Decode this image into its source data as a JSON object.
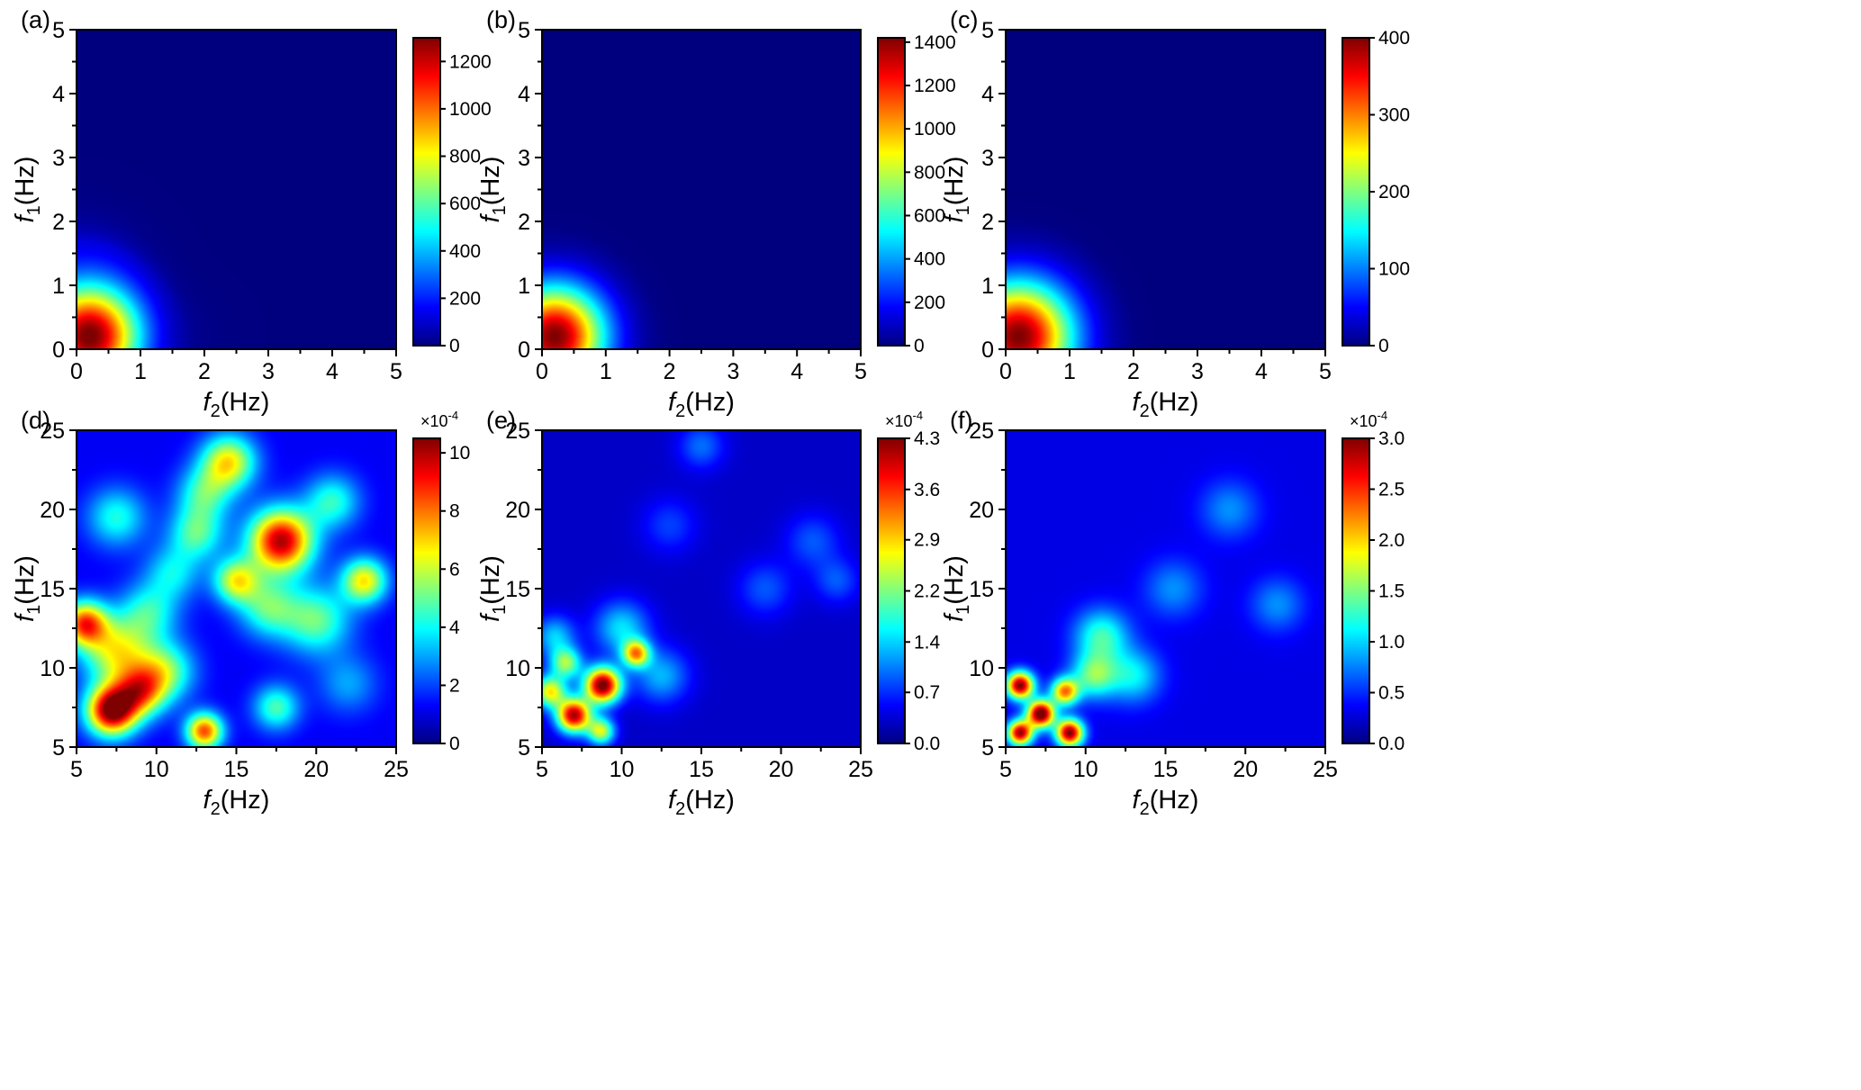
{
  "figure": {
    "title": "",
    "colormap": [
      "#00007f",
      "#0000ff",
      "#007fff",
      "#00ffff",
      "#7fff7f",
      "#ffff00",
      "#ff7f00",
      "#ff0000",
      "#7f0000"
    ],
    "axis_labels": {
      "x_var": "f",
      "x_sub": "2",
      "x_unit": "(Hz)",
      "y_var": "f",
      "y_sub": "1",
      "y_unit": "(Hz)"
    }
  },
  "chart_data": [
    {
      "type": "heatmap",
      "panel": "(a)",
      "xlim": [
        0,
        5
      ],
      "ylim": [
        0,
        5
      ],
      "xticks": [
        0,
        1,
        2,
        3,
        4,
        5
      ],
      "yticks": [
        0,
        1,
        2,
        3,
        4,
        5
      ],
      "colorbar": {
        "min": 0,
        "max": 1300,
        "ticks": [
          "0",
          "200",
          "400",
          "600",
          "800",
          "1000",
          "1200"
        ],
        "tick_values": [
          0,
          200,
          400,
          600,
          800,
          1000,
          1200
        ],
        "multiplier": ""
      },
      "peaks": [
        {
          "f2": 0.2,
          "f1": 0.2,
          "value": 1300,
          "spread": 0.55
        },
        {
          "f2": 0.0,
          "f1": 1.8,
          "value": 90,
          "spread": 0.9
        },
        {
          "f2": 2.5,
          "f1": 0.3,
          "value": 40,
          "spread": 0.6
        }
      ],
      "extent": 1.7
    },
    {
      "type": "heatmap",
      "panel": "(b)",
      "xlim": [
        0,
        5
      ],
      "ylim": [
        0,
        5
      ],
      "xticks": [
        0,
        1,
        2,
        3,
        4,
        5
      ],
      "yticks": [
        0,
        1,
        2,
        3,
        4,
        5
      ],
      "colorbar": {
        "min": 0,
        "max": 1420,
        "ticks": [
          "0",
          "200",
          "400",
          "600",
          "800",
          "1000",
          "1200",
          "1400"
        ],
        "tick_values": [
          0,
          200,
          400,
          600,
          800,
          1000,
          1200,
          1400
        ],
        "multiplier": ""
      },
      "peaks": [
        {
          "f2": 0.2,
          "f1": 0.2,
          "value": 1420,
          "spread": 0.55
        }
      ],
      "extent": 1.8
    },
    {
      "type": "heatmap",
      "panel": "(c)",
      "xlim": [
        0,
        5
      ],
      "ylim": [
        0,
        5
      ],
      "xticks": [
        0,
        1,
        2,
        3,
        4,
        5
      ],
      "yticks": [
        0,
        1,
        2,
        3,
        4,
        5
      ],
      "colorbar": {
        "min": 0,
        "max": 400,
        "ticks": [
          "0",
          "100",
          "200",
          "300",
          "400"
        ],
        "tick_values": [
          0,
          100,
          200,
          300,
          400
        ],
        "multiplier": ""
      },
      "peaks": [
        {
          "f2": 0.2,
          "f1": 0.2,
          "value": 400,
          "spread": 0.6
        }
      ],
      "extent": 1.9
    },
    {
      "type": "heatmap",
      "panel": "(d)",
      "xlim": [
        5,
        25
      ],
      "ylim": [
        5,
        25
      ],
      "xticks": [
        5,
        10,
        15,
        20,
        25
      ],
      "yticks": [
        5,
        10,
        15,
        20,
        25
      ],
      "colorbar": {
        "min": 0,
        "max": 10.5,
        "ticks": [
          "0",
          "2",
          "4",
          "6",
          "8",
          "10"
        ],
        "tick_values": [
          0,
          2,
          4,
          6,
          8,
          10
        ],
        "multiplier": "×10",
        "exponent": "-4"
      },
      "baseline": 1.2,
      "peaks": [
        {
          "f2": 7.2,
          "f1": 7.3,
          "value": 9.5,
          "spread": 1.1
        },
        {
          "f2": 17.8,
          "f1": 18.0,
          "value": 8.8,
          "spread": 1.4
        },
        {
          "f2": 5.5,
          "f1": 12.8,
          "value": 7.0,
          "spread": 1.0
        },
        {
          "f2": 13.0,
          "f1": 6.0,
          "value": 7.2,
          "spread": 0.8
        },
        {
          "f2": 9.0,
          "f1": 8.5,
          "value": 5.5,
          "spread": 1.1
        },
        {
          "f2": 7.5,
          "f1": 11.0,
          "value": 5.0,
          "spread": 1.5
        },
        {
          "f2": 10.5,
          "f1": 9.8,
          "value": 4.0,
          "spread": 1.3
        },
        {
          "f2": 14.5,
          "f1": 23.0,
          "value": 5.5,
          "spread": 1.2
        },
        {
          "f2": 15.0,
          "f1": 15.5,
          "value": 5.0,
          "spread": 1.0
        },
        {
          "f2": 23.0,
          "f1": 15.5,
          "value": 5.5,
          "spread": 1.0
        },
        {
          "f2": 20.0,
          "f1": 13.0,
          "value": 3.8,
          "spread": 1.5
        },
        {
          "f2": 17.0,
          "f1": 13.8,
          "value": 3.5,
          "spread": 1.3
        },
        {
          "f2": 12.5,
          "f1": 18.5,
          "value": 3.5,
          "spread": 1.2
        },
        {
          "f2": 21.0,
          "f1": 20.5,
          "value": 3.2,
          "spread": 1.2
        },
        {
          "f2": 13.0,
          "f1": 21.0,
          "value": 3.2,
          "spread": 1.2
        },
        {
          "f2": 9.5,
          "f1": 13.5,
          "value": 3.0,
          "spread": 1.3
        },
        {
          "f2": 17.5,
          "f1": 7.5,
          "value": 3.5,
          "spread": 1.0
        },
        {
          "f2": 7.5,
          "f1": 19.5,
          "value": 3.0,
          "spread": 1.3
        },
        {
          "f2": 11.0,
          "f1": 16.0,
          "value": 2.5,
          "spread": 1.2
        },
        {
          "f2": 22.0,
          "f1": 9.0,
          "value": 1.8,
          "spread": 1.3
        }
      ]
    },
    {
      "type": "heatmap",
      "panel": "(e)",
      "xlim": [
        5,
        25
      ],
      "ylim": [
        5,
        25
      ],
      "xticks": [
        5,
        10,
        15,
        20,
        25
      ],
      "yticks": [
        5,
        10,
        15,
        20,
        25
      ],
      "colorbar": {
        "min": 0,
        "max": 4.3,
        "ticks": [
          "0.0",
          "0.7",
          "1.4",
          "2.2",
          "2.9",
          "3.6",
          "4.3"
        ],
        "tick_values": [
          0,
          0.72,
          1.43,
          2.15,
          2.87,
          3.58,
          4.3
        ],
        "multiplier": "×10",
        "exponent": "-4"
      },
      "baseline": 0.3,
      "peaks": [
        {
          "f2": 8.8,
          "f1": 8.9,
          "value": 4.1,
          "spread": 0.8
        },
        {
          "f2": 7.0,
          "f1": 7.0,
          "value": 3.8,
          "spread": 0.75
        },
        {
          "f2": 5.5,
          "f1": 8.5,
          "value": 2.4,
          "spread": 0.7
        },
        {
          "f2": 10.9,
          "f1": 10.9,
          "value": 2.5,
          "spread": 0.6
        },
        {
          "f2": 8.7,
          "f1": 6.0,
          "value": 2.2,
          "spread": 0.6
        },
        {
          "f2": 6.5,
          "f1": 10.3,
          "value": 1.9,
          "spread": 0.7
        },
        {
          "f2": 10.0,
          "f1": 12.5,
          "value": 1.2,
          "spread": 1.2
        },
        {
          "f2": 12.5,
          "f1": 9.5,
          "value": 1.0,
          "spread": 1.2
        },
        {
          "f2": 5.8,
          "f1": 12.0,
          "value": 1.1,
          "spread": 0.9
        },
        {
          "f2": 15.0,
          "f1": 24.0,
          "value": 0.7,
          "spread": 1.0
        },
        {
          "f2": 19.0,
          "f1": 15.0,
          "value": 0.6,
          "spread": 1.2
        },
        {
          "f2": 22.0,
          "f1": 18.0,
          "value": 0.6,
          "spread": 1.2
        },
        {
          "f2": 13.0,
          "f1": 19.0,
          "value": 0.5,
          "spread": 1.2
        },
        {
          "f2": 23.5,
          "f1": 15.5,
          "value": 0.6,
          "spread": 1.0
        }
      ]
    },
    {
      "type": "heatmap",
      "panel": "(f)",
      "xlim": [
        5,
        25
      ],
      "ylim": [
        5,
        25
      ],
      "xticks": [
        5,
        10,
        15,
        20,
        25
      ],
      "yticks": [
        5,
        10,
        15,
        20,
        25
      ],
      "colorbar": {
        "min": 0,
        "max": 3.0,
        "ticks": [
          "0.0",
          "0.5",
          "1.0",
          "1.5",
          "2.0",
          "2.5",
          "3.0"
        ],
        "tick_values": [
          0,
          0.5,
          1.0,
          1.5,
          2.0,
          2.5,
          3.0
        ],
        "multiplier": "×10",
        "exponent": "-4"
      },
      "baseline": 0.3,
      "peaks": [
        {
          "f2": 7.2,
          "f1": 7.1,
          "value": 2.9,
          "spread": 0.6
        },
        {
          "f2": 5.9,
          "f1": 8.9,
          "value": 2.7,
          "spread": 0.6
        },
        {
          "f2": 5.9,
          "f1": 5.9,
          "value": 2.6,
          "spread": 0.55
        },
        {
          "f2": 9.0,
          "f1": 5.9,
          "value": 2.7,
          "spread": 0.6
        },
        {
          "f2": 8.7,
          "f1": 8.5,
          "value": 1.9,
          "spread": 0.6
        },
        {
          "f2": 10.5,
          "f1": 9.5,
          "value": 1.1,
          "spread": 1.0
        },
        {
          "f2": 11.0,
          "f1": 12.0,
          "value": 1.0,
          "spread": 1.2
        },
        {
          "f2": 13.0,
          "f1": 9.5,
          "value": 0.8,
          "spread": 1.2
        },
        {
          "f2": 19.0,
          "f1": 20.0,
          "value": 0.5,
          "spread": 1.3
        },
        {
          "f2": 15.5,
          "f1": 15.0,
          "value": 0.5,
          "spread": 1.3
        },
        {
          "f2": 22.0,
          "f1": 14.0,
          "value": 0.5,
          "spread": 1.2
        }
      ]
    }
  ]
}
